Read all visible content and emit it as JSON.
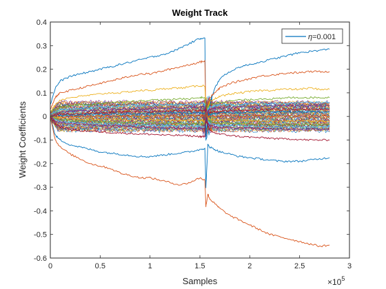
{
  "chart_data": {
    "type": "line",
    "title": "Weight Track",
    "xlabel": "Samples",
    "ylabel": "Weight Coefficients",
    "x_exponent_base": "×10",
    "x_exponent_power": "5",
    "xlim": [
      0,
      3
    ],
    "ylim": [
      -0.6,
      0.4
    ],
    "x_ticks": [
      0,
      0.5,
      1,
      1.5,
      2,
      2.5,
      3
    ],
    "x_tick_labels": [
      "0",
      "0.5",
      "1",
      "1.5",
      "2",
      "2.5",
      "3"
    ],
    "y_ticks": [
      -0.6,
      -0.5,
      -0.4,
      -0.3,
      -0.2,
      -0.1,
      0,
      0.1,
      0.2,
      0.3,
      0.4
    ],
    "y_tick_labels": [
      "-0.6",
      "-0.5",
      "-0.4",
      "-0.3",
      "-0.2",
      "-0.1",
      "0",
      "0.1",
      "0.2",
      "0.3",
      "0.4"
    ],
    "grid": false,
    "legend_position": "top-right",
    "legend": {
      "label_symbol": "η",
      "label_text": "=0.001",
      "color": "#0072BD"
    },
    "colors": [
      "#0072BD",
      "#D95319",
      "#EDB120",
      "#7E2F8E",
      "#77AC30",
      "#4DBEEE",
      "#A2142F"
    ],
    "x": [
      0,
      0.05,
      0.1,
      0.2,
      0.3,
      0.4,
      0.5,
      0.6,
      0.7,
      0.8,
      0.9,
      1.0,
      1.1,
      1.2,
      1.3,
      1.4,
      1.5,
      1.55,
      1.56,
      1.58,
      1.6,
      1.65,
      1.7,
      1.8,
      1.9,
      2.0,
      2.1,
      2.2,
      2.3,
      2.4,
      2.5,
      2.6,
      2.7,
      2.8
    ],
    "series": [
      {
        "color": "#0072BD",
        "values": [
          0.05,
          0.12,
          0.15,
          0.17,
          0.18,
          0.19,
          0.2,
          0.21,
          0.22,
          0.23,
          0.24,
          0.25,
          0.26,
          0.27,
          0.29,
          0.31,
          0.33,
          0.335,
          -0.1,
          0.0,
          0.05,
          0.12,
          0.16,
          0.19,
          0.21,
          0.22,
          0.23,
          0.24,
          0.25,
          0.26,
          0.27,
          0.275,
          0.28,
          0.285
        ]
      },
      {
        "color": "#D95319",
        "values": [
          0.03,
          0.08,
          0.1,
          0.11,
          0.12,
          0.13,
          0.14,
          0.15,
          0.16,
          0.17,
          0.18,
          0.18,
          0.19,
          0.2,
          0.21,
          0.22,
          0.23,
          0.235,
          0.02,
          0.05,
          0.08,
          0.1,
          0.12,
          0.14,
          0.15,
          0.16,
          0.17,
          0.175,
          0.18,
          0.185,
          0.185,
          0.19,
          0.19,
          0.19
        ]
      },
      {
        "color": "#EDB120",
        "values": [
          0.02,
          0.05,
          0.07,
          0.08,
          0.085,
          0.09,
          0.095,
          0.1,
          0.1,
          0.105,
          0.11,
          0.11,
          0.115,
          0.12,
          0.12,
          0.125,
          0.13,
          0.13,
          0.02,
          0.04,
          0.06,
          0.075,
          0.085,
          0.095,
          0.1,
          0.105,
          0.11,
          0.11,
          0.115,
          0.115,
          0.115,
          0.12,
          0.115,
          0.115
        ]
      },
      {
        "color": "#77AC30",
        "values": [
          0.02,
          0.03,
          0.04,
          0.045,
          0.05,
          0.05,
          0.055,
          0.06,
          0.06,
          0.065,
          0.065,
          0.07,
          0.07,
          0.07,
          0.075,
          0.075,
          0.08,
          0.08,
          0.03,
          0.04,
          0.05,
          0.055,
          0.06,
          0.065,
          0.07,
          0.07,
          0.075,
          0.075,
          0.075,
          0.08,
          0.08,
          0.08,
          0.08,
          0.08
        ]
      },
      {
        "color": "#4DBEEE",
        "values": [
          0.01,
          0.02,
          0.03,
          0.03,
          0.035,
          0.035,
          0.04,
          0.04,
          0.04,
          0.045,
          0.045,
          0.045,
          0.05,
          0.05,
          0.05,
          0.05,
          0.055,
          0.055,
          0.01,
          0.03,
          0.04,
          0.045,
          0.05,
          0.05,
          0.05,
          0.055,
          0.055,
          0.055,
          0.055,
          0.055,
          0.06,
          0.06,
          0.06,
          0.06
        ]
      },
      {
        "color": "#7E2F8E",
        "values": [
          0.0,
          0.01,
          0.02,
          0.02,
          0.025,
          0.025,
          0.025,
          0.03,
          0.03,
          0.03,
          0.03,
          0.035,
          0.035,
          0.035,
          0.035,
          0.04,
          0.04,
          0.04,
          -0.02,
          0.02,
          0.03,
          0.035,
          0.035,
          0.04,
          0.04,
          0.04,
          0.04,
          0.045,
          0.045,
          0.045,
          0.045,
          0.045,
          0.045,
          0.045
        ]
      },
      {
        "color": "#A2142F",
        "values": [
          0.0,
          0.005,
          0.01,
          0.01,
          0.012,
          0.015,
          0.015,
          0.015,
          0.018,
          0.02,
          0.02,
          0.02,
          0.02,
          0.022,
          0.025,
          0.025,
          0.025,
          0.025,
          -0.03,
          0.0,
          0.015,
          0.02,
          0.022,
          0.025,
          0.025,
          0.025,
          0.028,
          0.03,
          0.03,
          0.03,
          0.03,
          0.03,
          0.03,
          0.03
        ]
      },
      {
        "color": "#0072BD",
        "values": [
          0.0,
          0.0,
          0.005,
          0.005,
          0.008,
          0.01,
          0.01,
          0.01,
          0.01,
          0.012,
          0.012,
          0.012,
          0.012,
          0.015,
          0.015,
          0.015,
          0.015,
          0.015,
          -0.02,
          0.005,
          0.01,
          0.012,
          0.015,
          0.015,
          0.015,
          0.018,
          0.018,
          0.02,
          0.02,
          0.02,
          0.02,
          0.02,
          0.02,
          0.02
        ]
      },
      {
        "color": "#D95319",
        "values": [
          0.0,
          0.0,
          0.0,
          -0.002,
          0.0,
          0.002,
          0.0,
          0.002,
          0.0,
          0.003,
          0.002,
          0.0,
          0.003,
          0.002,
          0.0,
          0.003,
          0.002,
          0.0,
          0.03,
          0.0,
          0.002,
          0.0,
          0.002,
          0.003,
          0.0,
          0.002,
          0.003,
          0.0,
          0.002,
          0.003,
          0.0,
          0.002,
          0.003,
          0.002
        ]
      },
      {
        "color": "#EDB120",
        "values": [
          0.0,
          -0.005,
          -0.005,
          -0.008,
          -0.01,
          -0.01,
          -0.012,
          -0.01,
          -0.012,
          -0.015,
          -0.012,
          -0.015,
          -0.015,
          -0.015,
          -0.018,
          -0.015,
          -0.018,
          -0.018,
          0.02,
          -0.01,
          -0.012,
          -0.015,
          -0.015,
          -0.015,
          -0.018,
          -0.018,
          -0.02,
          -0.018,
          -0.02,
          -0.02,
          -0.02,
          -0.02,
          -0.02,
          -0.02
        ]
      },
      {
        "color": "#77AC30",
        "values": [
          0.0,
          -0.01,
          -0.015,
          -0.018,
          -0.02,
          -0.02,
          -0.022,
          -0.022,
          -0.025,
          -0.025,
          -0.028,
          -0.028,
          -0.03,
          -0.03,
          -0.03,
          -0.032,
          -0.032,
          -0.032,
          0.01,
          -0.015,
          -0.02,
          -0.025,
          -0.028,
          -0.03,
          -0.03,
          -0.032,
          -0.032,
          -0.035,
          -0.035,
          -0.035,
          -0.035,
          -0.035,
          -0.035,
          -0.035
        ]
      },
      {
        "color": "#4DBEEE",
        "values": [
          0.0,
          -0.015,
          -0.02,
          -0.025,
          -0.028,
          -0.03,
          -0.032,
          -0.032,
          -0.035,
          -0.035,
          -0.038,
          -0.038,
          -0.04,
          -0.04,
          -0.04,
          -0.042,
          -0.042,
          -0.045,
          0.03,
          -0.02,
          -0.03,
          -0.035,
          -0.038,
          -0.04,
          -0.04,
          -0.042,
          -0.042,
          -0.045,
          -0.045,
          -0.045,
          -0.045,
          -0.045,
          -0.045,
          -0.045
        ]
      },
      {
        "color": "#7E2F8E",
        "values": [
          0.0,
          -0.02,
          -0.025,
          -0.03,
          -0.032,
          -0.035,
          -0.038,
          -0.04,
          -0.04,
          -0.042,
          -0.045,
          -0.045,
          -0.048,
          -0.048,
          -0.05,
          -0.05,
          -0.05,
          -0.052,
          0.0,
          -0.03,
          -0.04,
          -0.045,
          -0.048,
          -0.05,
          -0.05,
          -0.05,
          -0.052,
          -0.052,
          -0.055,
          -0.055,
          -0.055,
          -0.055,
          -0.055,
          -0.055
        ]
      },
      {
        "color": "#A2142F",
        "values": [
          0.0,
          -0.03,
          -0.045,
          -0.055,
          -0.06,
          -0.062,
          -0.065,
          -0.068,
          -0.07,
          -0.072,
          -0.075,
          -0.075,
          -0.078,
          -0.08,
          -0.08,
          -0.082,
          -0.085,
          -0.085,
          0.05,
          -0.04,
          -0.06,
          -0.07,
          -0.075,
          -0.08,
          -0.085,
          -0.088,
          -0.09,
          -0.092,
          -0.095,
          -0.095,
          -0.098,
          -0.1,
          -0.1,
          -0.1
        ]
      },
      {
        "color": "#0072BD",
        "values": [
          0.0,
          -0.08,
          -0.1,
          -0.12,
          -0.13,
          -0.14,
          -0.15,
          -0.155,
          -0.16,
          -0.165,
          -0.17,
          -0.17,
          -0.165,
          -0.16,
          -0.155,
          -0.15,
          -0.14,
          -0.135,
          -0.3,
          -0.12,
          -0.13,
          -0.14,
          -0.15,
          -0.16,
          -0.17,
          -0.175,
          -0.18,
          -0.185,
          -0.19,
          -0.19,
          -0.19,
          -0.185,
          -0.18,
          -0.175
        ]
      },
      {
        "color": "#D95319",
        "values": [
          0.0,
          -0.1,
          -0.13,
          -0.16,
          -0.18,
          -0.2,
          -0.21,
          -0.22,
          -0.24,
          -0.25,
          -0.26,
          -0.26,
          -0.27,
          -0.28,
          -0.29,
          -0.28,
          -0.26,
          -0.27,
          -0.38,
          -0.33,
          -0.35,
          -0.37,
          -0.39,
          -0.42,
          -0.44,
          -0.46,
          -0.48,
          -0.5,
          -0.51,
          -0.52,
          -0.53,
          -0.54,
          -0.55,
          -0.545
        ]
      }
    ]
  }
}
